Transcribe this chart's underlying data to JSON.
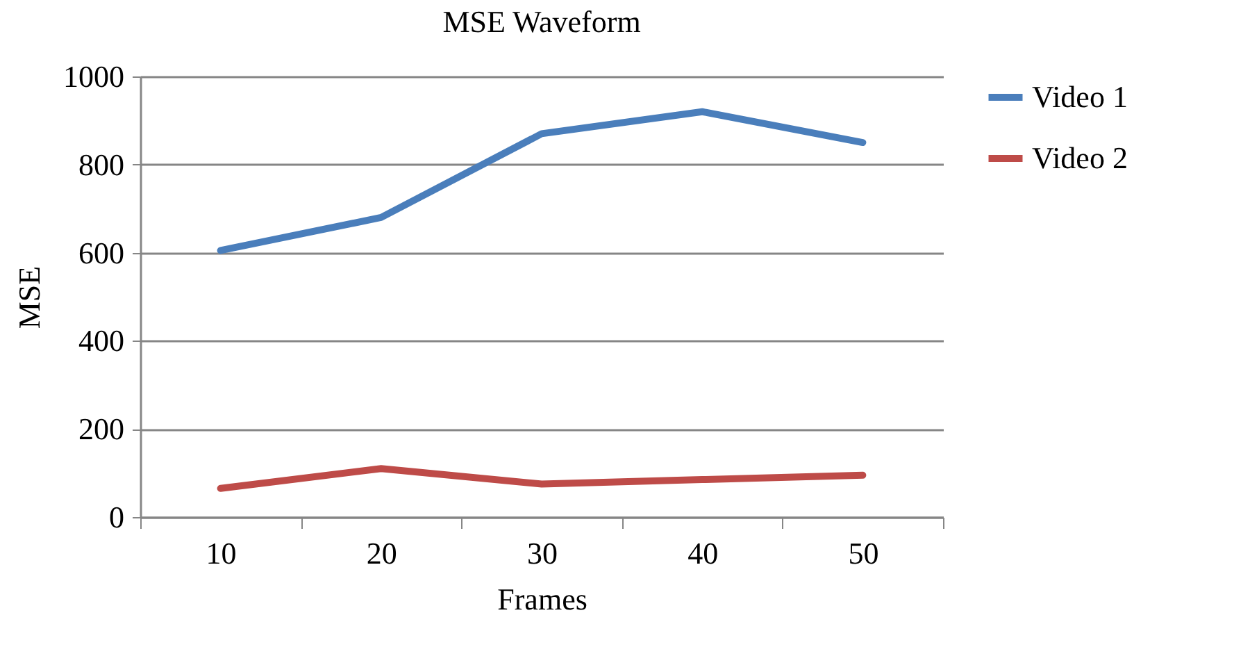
{
  "chart_data": {
    "type": "line",
    "title": "MSE Waveform",
    "xlabel": "Frames",
    "ylabel": "MSE",
    "categories": [
      "10",
      "20",
      "30",
      "40",
      "50"
    ],
    "series": [
      {
        "name": "Video 1",
        "color": "#4a7ebb",
        "values": [
          605,
          680,
          870,
          920,
          850
        ]
      },
      {
        "name": "Video 2",
        "color": "#be4b48",
        "values": [
          65,
          110,
          75,
          85,
          95
        ]
      }
    ],
    "ylim": [
      0,
      1000
    ],
    "yticks": [
      0,
      200,
      400,
      600,
      800,
      1000
    ],
    "grid": "y",
    "legend": "right",
    "marker": "none",
    "line_style": "solid"
  }
}
